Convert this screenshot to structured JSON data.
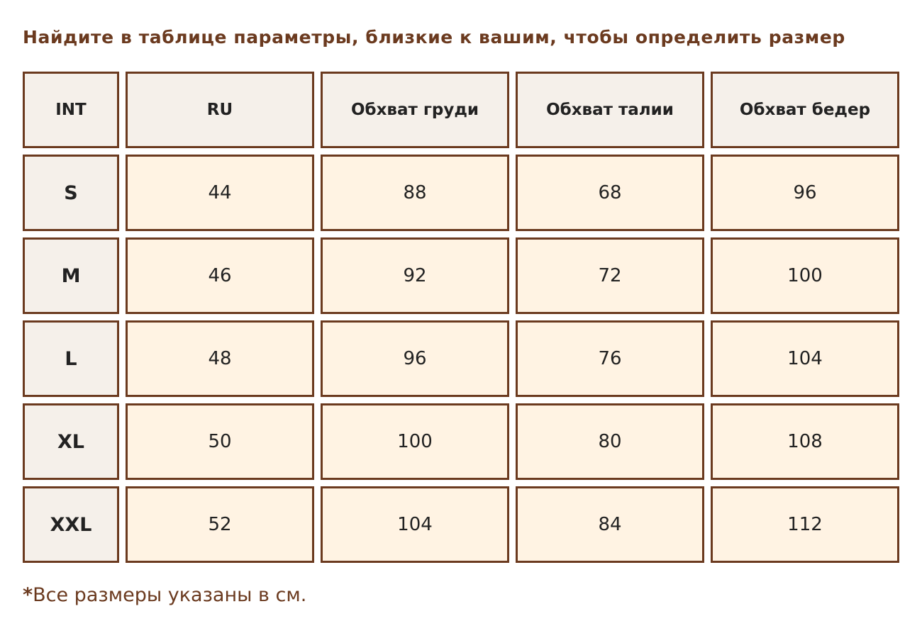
{
  "title": "Найдите в таблице параметры, близкие к вашим, чтобы определить размер",
  "table": {
    "headers": [
      "INT",
      "RU",
      "Обхват груди",
      "Обхват талии",
      "Обхват бедер"
    ],
    "rows": [
      [
        "S",
        "44",
        "88",
        "68",
        "96"
      ],
      [
        "M",
        "46",
        "92",
        "72",
        "100"
      ],
      [
        "L",
        "48",
        "96",
        "76",
        "104"
      ],
      [
        "XL",
        "50",
        "100",
        "80",
        "108"
      ],
      [
        "XXL",
        "52",
        "104",
        "84",
        "112"
      ]
    ]
  },
  "note": {
    "asterisk": "*",
    "text": "Все размеры указаны в см."
  },
  "colors": {
    "accent": "#6b3a1f",
    "header_bg": "#f5f0ea",
    "cell_bg": "#fff3e3"
  }
}
